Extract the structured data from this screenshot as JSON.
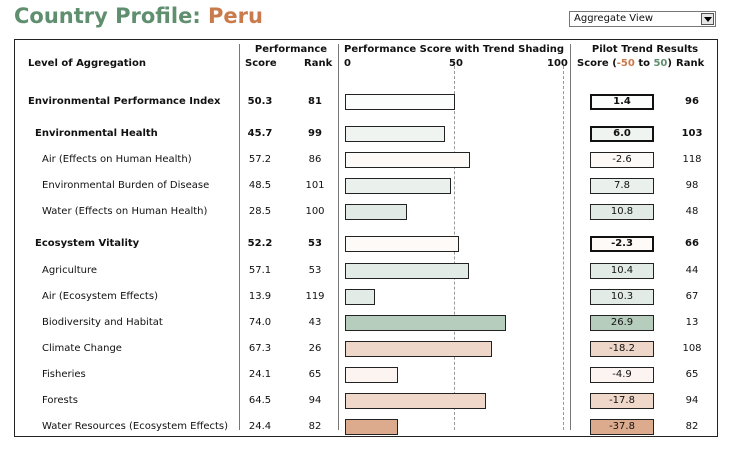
{
  "title": {
    "prefix": "Country Profile:",
    "country": "Peru"
  },
  "view_select": {
    "value": "Aggregate View"
  },
  "headers": {
    "level": "Level of Aggregation",
    "performance": "Performance",
    "score": "Score",
    "rank": "Rank",
    "chart": "Performance Score with Trend Shading",
    "tick_0": "0",
    "tick_50": "50",
    "tick_100": "100",
    "pilot": "Pilot Trend Results",
    "pilot_score_pre": "Score (",
    "pilot_neg": "-50",
    "pilot_mid": " to ",
    "pilot_pos": "50",
    "pilot_post": ")",
    "pilot_rank": "Rank"
  },
  "chart_data": {
    "type": "bar",
    "xlim": [
      0,
      100
    ],
    "categories": [
      "Environmental Performance Index",
      "Environmental Health",
      "Air (Effects on Human Health)",
      "Environmental Burden of Disease",
      "Water (Effects on Human Health)",
      "Ecosystem Vitality",
      "Agriculture",
      "Air (Ecosystem Effects)",
      "Biodiversity and Habitat",
      "Climate Change",
      "Fisheries",
      "Forests",
      "Water Resources (Ecosystem Effects)"
    ],
    "values": [
      50.3,
      45.7,
      57.2,
      48.5,
      28.5,
      52.2,
      57.1,
      13.9,
      74.0,
      67.3,
      24.1,
      64.5,
      24.4
    ],
    "trend_values": [
      1.4,
      6.0,
      -2.6,
      7.8,
      10.8,
      -2.3,
      10.4,
      10.3,
      26.9,
      -18.2,
      -4.9,
      -17.8,
      -37.8
    ],
    "trend_range": [
      -50,
      50
    ]
  },
  "rows": [
    {
      "label": "Environmental Performance Index",
      "score": "50.3",
      "rank": "81",
      "trend": "1.4",
      "trend_rank": "96",
      "level": 0
    },
    {
      "label": "Environmental Health",
      "score": "45.7",
      "rank": "99",
      "trend": "6.0",
      "trend_rank": "103",
      "level": 1
    },
    {
      "label": "Air (Effects on Human Health)",
      "score": "57.2",
      "rank": "86",
      "trend": "-2.6",
      "trend_rank": "118",
      "level": 2
    },
    {
      "label": "Environmental Burden of Disease",
      "score": "48.5",
      "rank": "101",
      "trend": "7.8",
      "trend_rank": "98",
      "level": 2
    },
    {
      "label": "Water (Effects on Human Health)",
      "score": "28.5",
      "rank": "100",
      "trend": "10.8",
      "trend_rank": "48",
      "level": 2
    },
    {
      "label": "Ecosystem Vitality",
      "score": "52.2",
      "rank": "53",
      "trend": "-2.3",
      "trend_rank": "66",
      "level": 1
    },
    {
      "label": "Agriculture",
      "score": "57.1",
      "rank": "53",
      "trend": "10.4",
      "trend_rank": "44",
      "level": 2
    },
    {
      "label": "Air (Ecosystem Effects)",
      "score": "13.9",
      "rank": "119",
      "trend": "10.3",
      "trend_rank": "67",
      "level": 2
    },
    {
      "label": "Biodiversity and Habitat",
      "score": "74.0",
      "rank": "43",
      "trend": "26.9",
      "trend_rank": "13",
      "level": 2
    },
    {
      "label": "Climate Change",
      "score": "67.3",
      "rank": "26",
      "trend": "-18.2",
      "trend_rank": "108",
      "level": 2
    },
    {
      "label": "Fisheries",
      "score": "24.1",
      "rank": "65",
      "trend": "-4.9",
      "trend_rank": "65",
      "level": 2
    },
    {
      "label": "Forests",
      "score": "64.5",
      "rank": "94",
      "trend": "-17.8",
      "trend_rank": "94",
      "level": 2
    },
    {
      "label": "Water Resources (Ecosystem Effects)",
      "score": "24.4",
      "rank": "82",
      "trend": "-37.8",
      "trend_rank": "82",
      "level": 2
    }
  ],
  "colors": {
    "positive": "#5f8f6f",
    "negative": "#c97b4c",
    "zero": "#ffffff"
  }
}
